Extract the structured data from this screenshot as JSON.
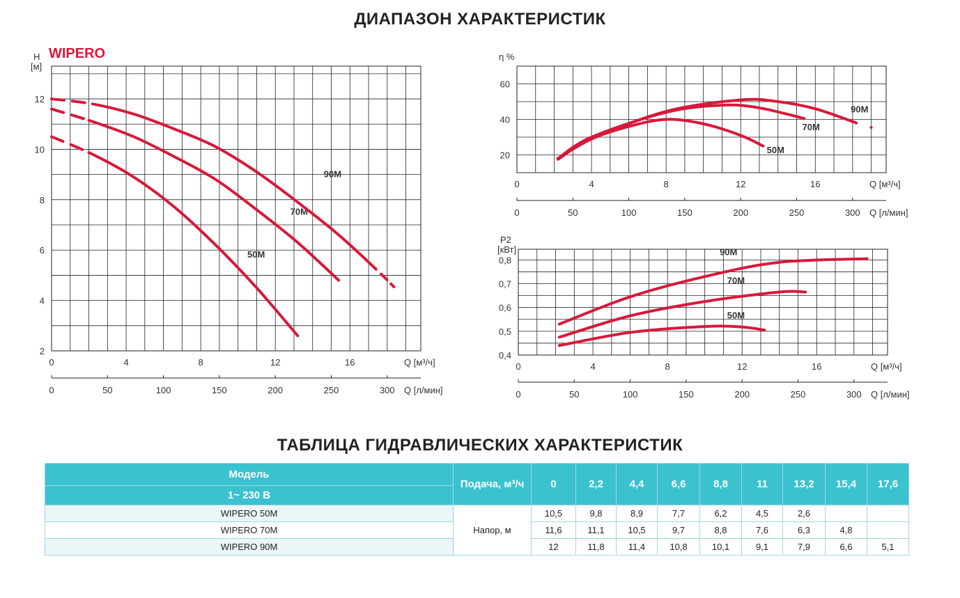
{
  "title": "ДИАПАЗОН ХАРАКТЕРИСТИК",
  "brand": "WIPERO",
  "table_title": "ТАБЛИЦА ГИДРАВЛИЧЕСКИХ ХАРАКТЕРИСТИК",
  "colors": {
    "curve": "#d7193a",
    "header": "#3bc2cf"
  },
  "chart_data": [
    {
      "type": "line",
      "id": "head",
      "ylabel": "H",
      "yunit": "[м]",
      "xlabel": "Q [м³/ч]",
      "x2label": "Q [л/мин]",
      "xlim": [
        0,
        19.8
      ],
      "ylim": [
        2,
        13.3
      ],
      "yticks": [
        2,
        4,
        6,
        8,
        10,
        12
      ],
      "xticks": [
        0,
        4,
        8,
        12,
        16
      ],
      "x2ticks": [
        0,
        50,
        100,
        150,
        200,
        250,
        300
      ],
      "grid": true,
      "series": [
        {
          "name": "50M",
          "label_at": [
            10.5,
            5.7
          ],
          "dash_until": 2.0,
          "dash_after": null,
          "x": [
            0,
            2.2,
            4.4,
            6.6,
            8.8,
            11,
            13.2
          ],
          "y": [
            10.5,
            9.8,
            8.9,
            7.7,
            6.2,
            4.5,
            2.6
          ]
        },
        {
          "name": "70M",
          "label_at": [
            12.8,
            7.4
          ],
          "dash_until": 2.0,
          "dash_after": null,
          "x": [
            0,
            2.2,
            4.4,
            6.6,
            8.8,
            11,
            13.2,
            15.4
          ],
          "y": [
            11.6,
            11.1,
            10.5,
            9.7,
            8.8,
            7.6,
            6.3,
            4.8
          ]
        },
        {
          "name": "90M",
          "label_at": [
            14.6,
            8.9
          ],
          "dash_until": 2.2,
          "dash_after": 17.4,
          "x": [
            0,
            2.2,
            4.4,
            6.6,
            8.8,
            11,
            13.2,
            15.4,
            17.6,
            18.8
          ],
          "y": [
            12,
            11.8,
            11.4,
            10.8,
            10.1,
            9.1,
            7.9,
            6.6,
            5.1,
            4.2
          ]
        }
      ]
    },
    {
      "type": "line",
      "id": "eff",
      "ylabel": "η %",
      "yunit": "",
      "xlabel": "Q [м³/ч]",
      "x2label": "Q [л/мин]",
      "xlim": [
        0,
        19.8
      ],
      "ylim": [
        10,
        70
      ],
      "yticks": [
        20,
        40,
        60
      ],
      "xticks": [
        0,
        4,
        8,
        12,
        16
      ],
      "x2ticks": [
        0,
        50,
        100,
        150,
        200,
        250,
        300
      ],
      "grid": true,
      "series": [
        {
          "name": "50M",
          "label_at": [
            13.4,
            21
          ],
          "x": [
            2.2,
            4,
            6,
            8,
            10,
            12,
            13.2
          ],
          "y": [
            18,
            29,
            36,
            40,
            37.5,
            31,
            25
          ]
        },
        {
          "name": "70M",
          "label_at": [
            15.3,
            34
          ],
          "x": [
            2.2,
            4,
            8,
            11,
            13,
            15.4
          ],
          "y": [
            18,
            30,
            44,
            48,
            46.5,
            40.5
          ]
        },
        {
          "name": "90M",
          "label_at": [
            17.9,
            44
          ],
          "x": [
            2.2,
            4,
            8,
            12,
            14,
            16,
            18.2
          ],
          "y": [
            17.5,
            29,
            44.5,
            51,
            50,
            46,
            38
          ]
        }
      ]
    },
    {
      "type": "line",
      "id": "power",
      "ylabel": "P2",
      "yunit": "[кВт]",
      "xlabel": "Q [м³/ч]",
      "x2label": "Q [л/мин]",
      "xlim": [
        0,
        19.8
      ],
      "ylim": [
        0.4,
        0.845
      ],
      "yticks": [
        0.4,
        0.5,
        0.6,
        0.7,
        0.8
      ],
      "yticklabels": [
        "0,4",
        "0,5",
        "0,6",
        "0,7",
        "0,8"
      ],
      "xticks": [
        0,
        4,
        8,
        12,
        16
      ],
      "x2ticks": [
        0,
        50,
        100,
        150,
        200,
        250,
        300
      ],
      "grid": true,
      "series": [
        {
          "name": "50M",
          "label_at": [
            11.2,
            0.553
          ],
          "x": [
            2.2,
            6,
            10,
            12,
            13.2
          ],
          "y": [
            0.44,
            0.495,
            0.52,
            0.518,
            0.505
          ]
        },
        {
          "name": "70M",
          "label_at": [
            11.2,
            0.7
          ],
          "x": [
            2.2,
            6,
            10,
            14,
            15.4
          ],
          "y": [
            0.475,
            0.565,
            0.625,
            0.665,
            0.665
          ]
        },
        {
          "name": "90M",
          "label_at": [
            10.8,
            0.82
          ],
          "x": [
            2.2,
            6,
            10,
            14,
            18.7
          ],
          "y": [
            0.53,
            0.645,
            0.73,
            0.79,
            0.805
          ]
        }
      ]
    }
  ],
  "table": {
    "model_header": "Модель",
    "voltage": "1~ 230 В",
    "flow_header": "Подача, м³/ч",
    "head_label": "Напор, м",
    "flows": [
      "0",
      "2,2",
      "4,4",
      "6,6",
      "8,8",
      "11",
      "13,2",
      "15,4",
      "17,6"
    ],
    "rows": [
      {
        "model": "WIPERO 50M",
        "values": [
          "10,5",
          "9,8",
          "8,9",
          "7,7",
          "6,2",
          "4,5",
          "2,6",
          "",
          ""
        ]
      },
      {
        "model": "WIPERO 70M",
        "values": [
          "11,6",
          "11,1",
          "10,5",
          "9,7",
          "8,8",
          "7,6",
          "6,3",
          "4,8",
          ""
        ]
      },
      {
        "model": "WIPERO 90M",
        "values": [
          "12",
          "11,8",
          "11,4",
          "10,8",
          "10,1",
          "9,1",
          "7,9",
          "6,6",
          "5,1"
        ]
      }
    ]
  }
}
